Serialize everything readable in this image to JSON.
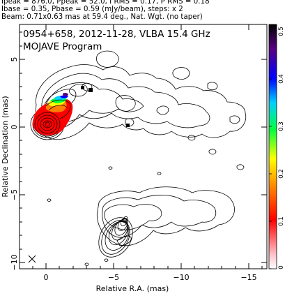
{
  "header": {
    "line1": "Ipeak = 876.0, Ppeak = 52.0, I RMS = 0.17, P RMS = 0.18",
    "line2": "Ibase = 0.35, Pbase = 0.59 (mJy/beam), steps: x 2",
    "line3": "Beam: 0.71x0.63 mas at 59.4 deg., Nat. Wgt. (no taper)"
  },
  "plot": {
    "title": "0954+658, 2012-11-28, VLBA 15.4 GHz",
    "subtitle": "MOJAVE Program",
    "xlabel": "Relative R.A. (mas)",
    "ylabel": "Relative Declination (mas)",
    "xticks": [
      "0",
      "−5",
      "−10",
      "−15"
    ],
    "yticks": [
      "5",
      "0",
      "−5",
      "−10"
    ],
    "beam_marker": "beam-cross-icon",
    "colors": {
      "contour": "#000000",
      "frame": "#000000"
    }
  },
  "colorbar": {
    "ticks": [
      "0.5",
      "0.4",
      "0.3",
      "0.2",
      "0.1",
      "0"
    ],
    "range": [
      0,
      0.5
    ],
    "stops": [
      "#000000",
      "#5a0080",
      "#0000ff",
      "#00d0ff",
      "#00ff40",
      "#ffff00",
      "#ff8000",
      "#ff0000",
      "#ffc0c8",
      "#ffffff"
    ]
  }
}
